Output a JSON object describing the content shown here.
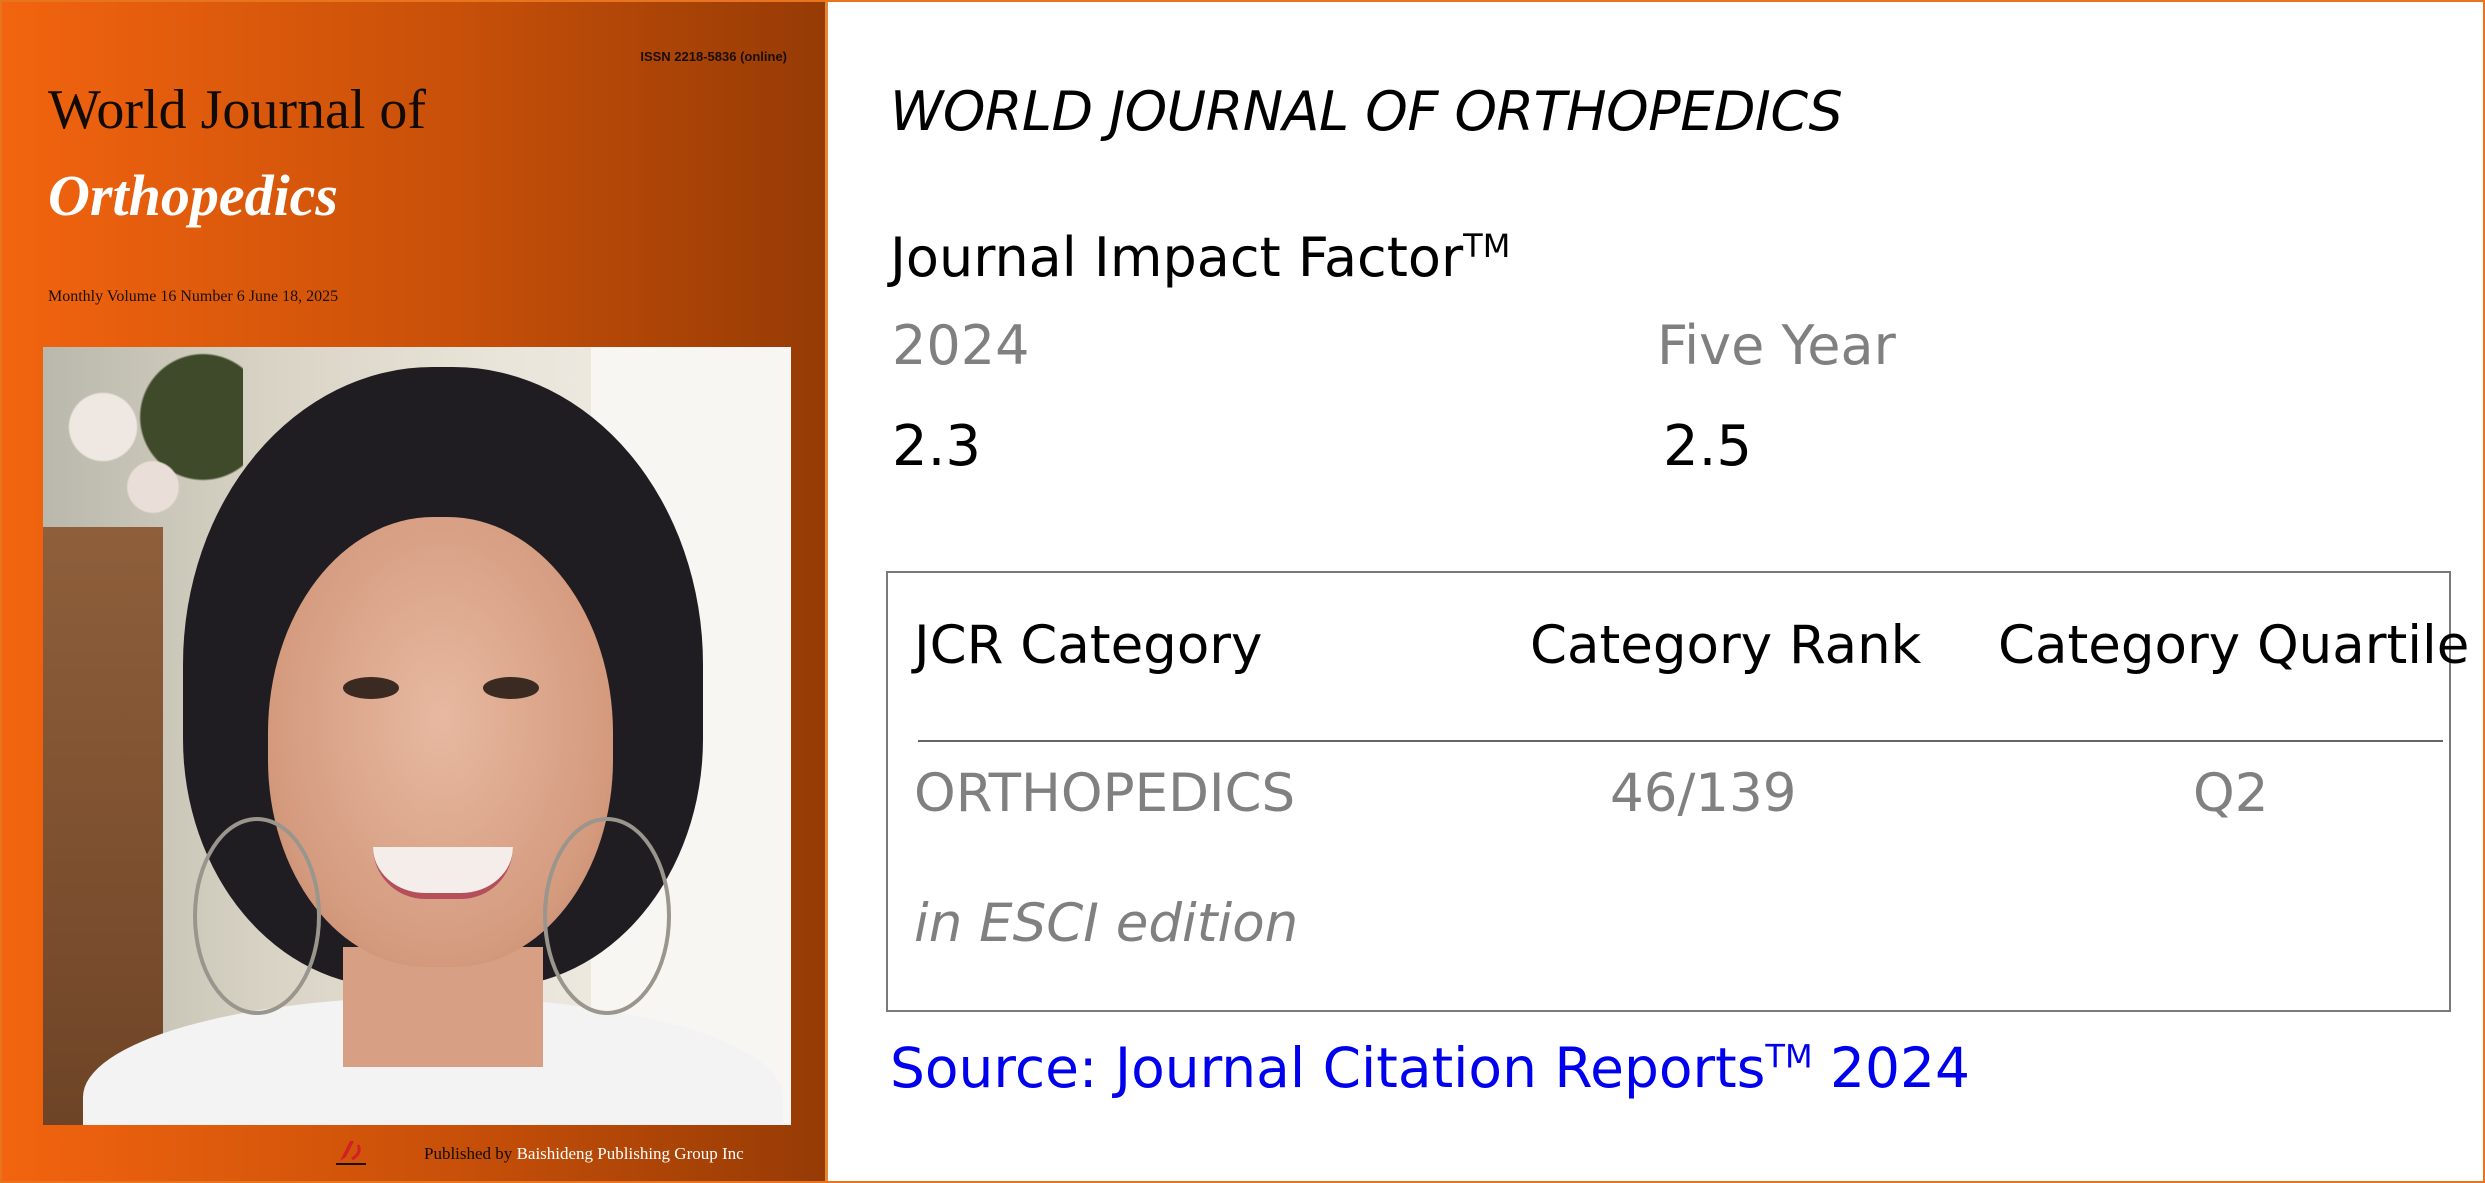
{
  "cover": {
    "issn": "ISSN 2218-5836 (online)",
    "title_line1": "World Journal of",
    "title_line2": "Orthopedics",
    "issue": "Monthly Volume 16 Number 6 June 18, 2025",
    "publisher_prefix": "Published by",
    "publisher_name": "Baishideng Publishing Group Inc"
  },
  "info": {
    "journal_name": "WORLD JOURNAL OF ORTHOPEDICS",
    "jif_title": "Journal Impact Factor",
    "tm": "TM",
    "year_label": "2024",
    "five_year_label": "Five Year",
    "value_2024": "2.3",
    "value_five_year": "2.5"
  },
  "jcr": {
    "headers": {
      "category": "JCR Category",
      "rank": "Category Rank",
      "quartile": "Category Quartile"
    },
    "row": {
      "category": "ORTHOPEDICS",
      "rank": "46/139",
      "quartile": "Q2"
    },
    "edition": "in ESCI edition"
  },
  "source": {
    "prefix": "Source: Journal Citation Reports",
    "tm": "TM",
    "year": "2024"
  },
  "colors": {
    "cover_orange": "#f2640f",
    "link_blue": "#0000ee",
    "muted_gray": "#808080"
  }
}
